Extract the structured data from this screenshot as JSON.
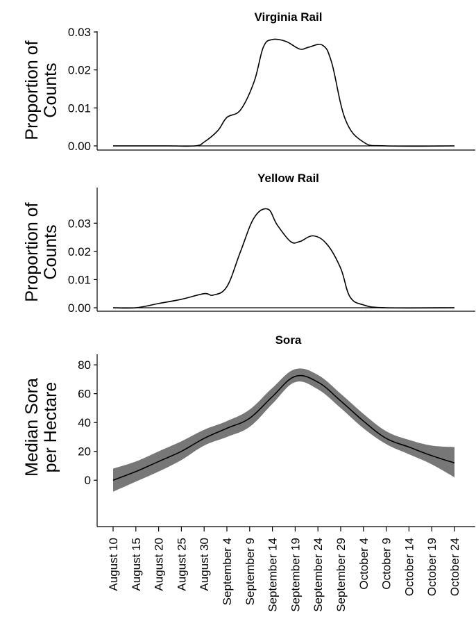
{
  "chart_data": {
    "shared_x": {
      "dates": [
        "August 10",
        "August 15",
        "August 20",
        "August 25",
        "August 30",
        "September 4",
        "September 9",
        "September 14",
        "September 19",
        "September 24",
        "September 29",
        "October 4",
        "October 9",
        "October 14",
        "October 19",
        "October 24"
      ],
      "start_date": "August 10",
      "end_date": "October 24"
    },
    "panels": [
      {
        "type": "line",
        "title": "Virginia Rail",
        "ylabel": [
          "Proportion of",
          "Counts"
        ],
        "ylim": [
          0,
          0.03
        ],
        "yticks": [
          "0.00",
          "0.01",
          "0.02",
          "0.03"
        ],
        "yticks_values": [
          0,
          0.01,
          0.02,
          0.03
        ],
        "series": [
          {
            "x": [
              "August 10",
              "August 22",
              "August 28",
              "August 30",
              "September 2",
              "September 4",
              "September 7",
              "September 10",
              "September 12",
              "September 14",
              "September 17",
              "September 20",
              "September 22",
              "September 25",
              "September 27",
              "September 30",
              "October 4",
              "October 9",
              "October 24"
            ],
            "y": [
              0,
              0,
              0,
              0.001,
              0.004,
              0.0075,
              0.0095,
              0.017,
              0.026,
              0.028,
              0.0275,
              0.0255,
              0.026,
              0.0265,
              0.022,
              0.007,
              0.001,
              0,
              0
            ]
          }
        ]
      },
      {
        "type": "line",
        "title": "Yellow Rail",
        "ylabel": [
          "Proportion of",
          "Counts"
        ],
        "ylim": [
          0,
          0.035
        ],
        "yticks": [
          "0.00",
          "0.01",
          "0.02",
          "0.03"
        ],
        "yticks_values": [
          0,
          0.01,
          0.02,
          0.03
        ],
        "series": [
          {
            "x": [
              "August 10",
              "August 15",
              "August 20",
              "August 25",
              "August 30",
              "September 1",
              "September 4",
              "September 7",
              "September 10",
              "September 13",
              "September 15",
              "September 18",
              "September 20",
              "September 23",
              "September 26",
              "September 29",
              "October 1",
              "October 4",
              "October 9",
              "October 24"
            ],
            "y": [
              0,
              0,
              0.0015,
              0.003,
              0.005,
              0.0045,
              0.0075,
              0.02,
              0.032,
              0.035,
              0.0295,
              0.0235,
              0.0235,
              0.0255,
              0.0225,
              0.014,
              0.004,
              0.001,
              0,
              0
            ]
          }
        ]
      },
      {
        "type": "line",
        "title": "Sora",
        "ylabel": [
          "Median Sora",
          "per Hectare"
        ],
        "ylim": [
          -10,
          82
        ],
        "yticks": [
          "0",
          "20",
          "40",
          "60",
          "80"
        ],
        "yticks_values": [
          0,
          20,
          40,
          60,
          80
        ],
        "series": [
          {
            "x": [
              "August 10",
              "August 15",
              "August 20",
              "August 25",
              "August 30",
              "September 4",
              "September 9",
              "September 14",
              "September 19",
              "September 24",
              "September 29",
              "October 4",
              "October 9",
              "October 14",
              "October 19",
              "October 24"
            ],
            "y": [
              0,
              6,
              13,
              20,
              29,
              36,
              43,
              58,
              72,
              68,
              55,
              41,
              29,
              23,
              17,
              12
            ],
            "lower": [
              -8,
              -1,
              6,
              14,
              24,
              30,
              37,
              53,
              68,
              63,
              50,
              36,
              25,
              18,
              11,
              2
            ],
            "upper": [
              8,
              13,
              20,
              27,
              35,
              41,
              49,
              64,
              77,
              73,
              60,
              46,
              34,
              28,
              24,
              23
            ]
          }
        ]
      }
    ]
  }
}
